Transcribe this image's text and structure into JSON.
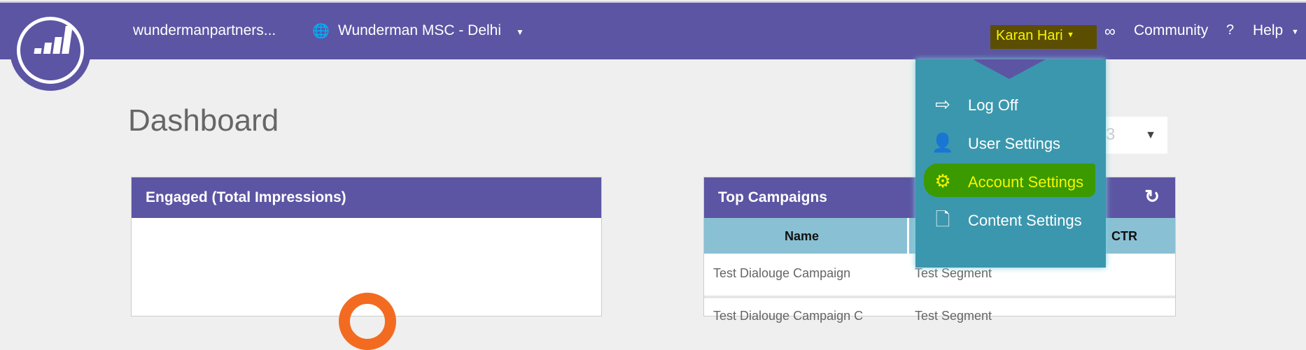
{
  "nav": {
    "account": "wundermanpartners...",
    "workspace": "Wunderman MSC - Delhi",
    "user": "Karan Hari",
    "community": "Community",
    "help": "Help"
  },
  "user_menu": {
    "items": [
      {
        "label": "Log Off",
        "icon": "log-off-icon"
      },
      {
        "label": "User Settings",
        "icon": "user-settings-icon"
      },
      {
        "label": "Account Settings",
        "icon": "gear-icon",
        "highlighted": true
      },
      {
        "label": "Content Settings",
        "icon": "content-settings-icon"
      }
    ]
  },
  "page": {
    "title": "Dashboard",
    "select_value": "3"
  },
  "engaged": {
    "title": "Engaged (Total Impressions)"
  },
  "top_campaigns": {
    "title": "Top Campaigns",
    "columns": [
      "Name",
      "",
      "CTR"
    ],
    "rows": [
      [
        "Test Dialouge Campaign",
        "Test Segment",
        ""
      ],
      [
        "Test Dialouge Campaign C",
        "Test Segment",
        ""
      ]
    ]
  },
  "colors": {
    "brand": "#5c55a3",
    "menu": "#3b97ad",
    "accent": "#f26b21",
    "highlight": "#3a9a00"
  }
}
